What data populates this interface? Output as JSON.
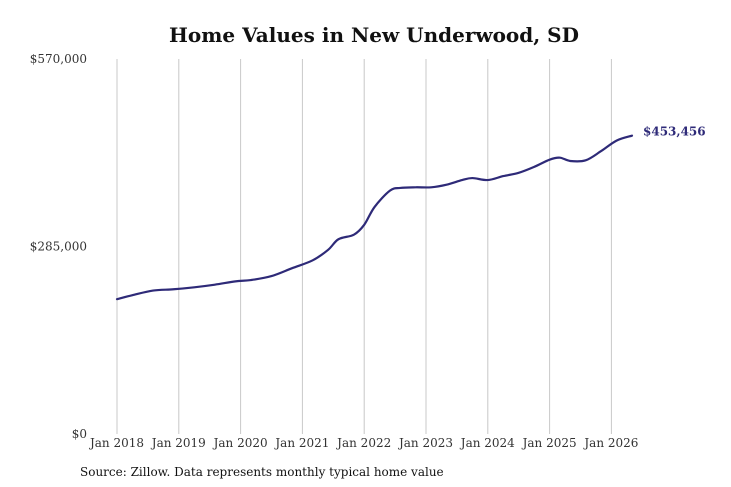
{
  "chart_data": {
    "type": "line",
    "title": "Home Values in New Underwood, SD",
    "xlabel": "",
    "ylabel": "",
    "ylim": [
      0,
      570000
    ],
    "yticks": [
      0,
      285000,
      570000
    ],
    "ytick_labels": [
      "$0",
      "$285,000",
      "$570,000"
    ],
    "x_tick_labels": [
      "Jan 2018",
      "Jan 2019",
      "Jan 2020",
      "Jan 2021",
      "Jan 2022",
      "Jan 2023",
      "Jan 2024",
      "Jan 2025",
      "Jan 2026"
    ],
    "xlim": [
      "2018-01",
      "2026-05"
    ],
    "grid": "vertical",
    "line_color": "#2e2a78",
    "end_label": "$453,456",
    "series": [
      {
        "points": [
          [
            "2018-01",
            205000
          ],
          [
            "2018-04",
            211000
          ],
          [
            "2018-08",
            218000
          ],
          [
            "2018-12",
            220000
          ],
          [
            "2019-04",
            223000
          ],
          [
            "2019-08",
            227000
          ],
          [
            "2019-12",
            232000
          ],
          [
            "2020-03",
            234000
          ],
          [
            "2020-07",
            240000
          ],
          [
            "2020-11",
            252000
          ],
          [
            "2021-03",
            264000
          ],
          [
            "2021-06",
            280000
          ],
          [
            "2021-08",
            296000
          ],
          [
            "2021-11",
            303000
          ],
          [
            "2022-01",
            318000
          ],
          [
            "2022-03",
            345000
          ],
          [
            "2022-06",
            370000
          ],
          [
            "2022-08",
            374000
          ],
          [
            "2022-11",
            375000
          ],
          [
            "2023-02",
            375000
          ],
          [
            "2023-05",
            379000
          ],
          [
            "2023-08",
            386000
          ],
          [
            "2023-10",
            389000
          ],
          [
            "2024-01",
            386000
          ],
          [
            "2024-04",
            392000
          ],
          [
            "2024-07",
            397000
          ],
          [
            "2024-10",
            406000
          ],
          [
            "2025-01",
            417000
          ],
          [
            "2025-03",
            420000
          ],
          [
            "2025-05",
            415000
          ],
          [
            "2025-08",
            416000
          ],
          [
            "2025-11",
            430000
          ],
          [
            "2026-02",
            446000
          ],
          [
            "2026-05",
            453456
          ]
        ]
      }
    ]
  },
  "footer": {
    "source": "Source: Zillow. Data represents monthly typical home value"
  }
}
